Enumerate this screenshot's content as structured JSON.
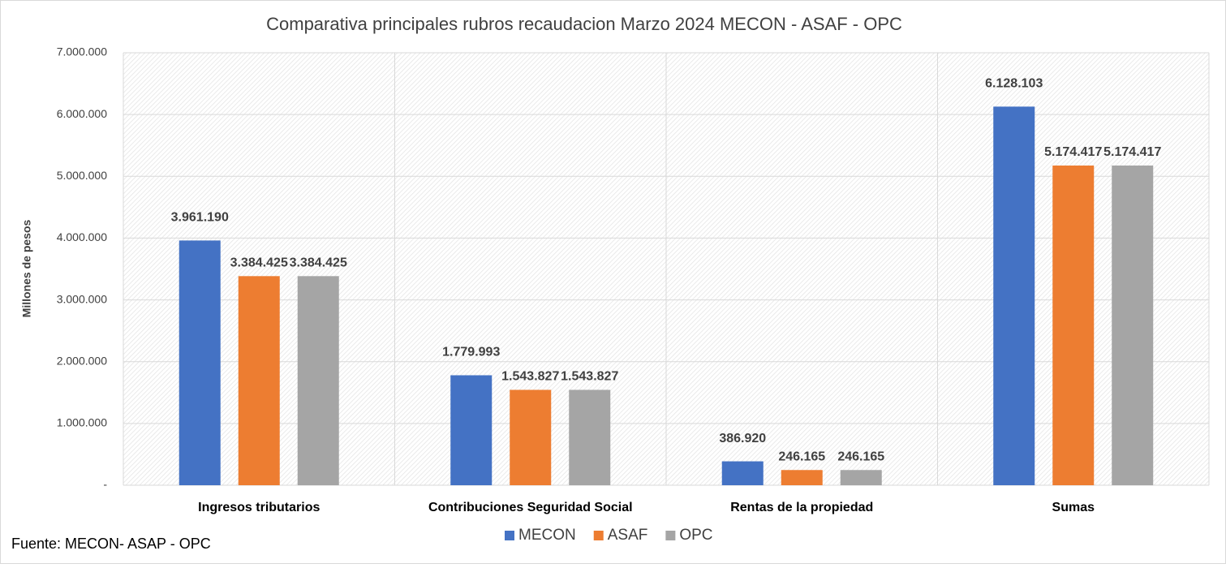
{
  "chart_data": {
    "type": "bar",
    "title": "Comparativa principales rubros recaudacion Marzo 2024 MECON - ASAF - OPC",
    "y_label": "Millones de pesos",
    "source": "Fuente: MECON- ASAP - OPC",
    "categories": [
      "Ingresos tributarios",
      "Contribuciones Seguridad Social",
      "Rentas de la propiedad",
      "Sumas"
    ],
    "series": [
      {
        "name": "MECON",
        "color": "#4472c4",
        "values": [
          3961190,
          1779993,
          386920,
          6128103
        ],
        "value_labels": [
          "3.961.190",
          "1.779.993",
          "386.920",
          "6.128.103"
        ]
      },
      {
        "name": "ASAF",
        "color": "#ed7d31",
        "values": [
          3384425,
          1543827,
          246165,
          5174417
        ],
        "value_labels": [
          "3.384.425",
          "1.543.827",
          "246.165",
          "5.174.417"
        ]
      },
      {
        "name": "OPC",
        "color": "#a5a5a5",
        "values": [
          3384425,
          1543827,
          246165,
          5174417
        ],
        "value_labels": [
          "3.384.425",
          "1.543.827",
          "246.165",
          "5.174.417"
        ]
      }
    ],
    "ylim": [
      0,
      7000000
    ],
    "yticks": [
      {
        "value": 0,
        "label": "-"
      },
      {
        "value": 1000000,
        "label": "1.000.000"
      },
      {
        "value": 2000000,
        "label": "2.000.000"
      },
      {
        "value": 3000000,
        "label": "3.000.000"
      },
      {
        "value": 4000000,
        "label": "4.000.000"
      },
      {
        "value": 5000000,
        "label": "5.000.000"
      },
      {
        "value": 6000000,
        "label": "6.000.000"
      },
      {
        "value": 7000000,
        "label": "7.000.000"
      }
    ],
    "grid": true,
    "legend": "bottom"
  }
}
